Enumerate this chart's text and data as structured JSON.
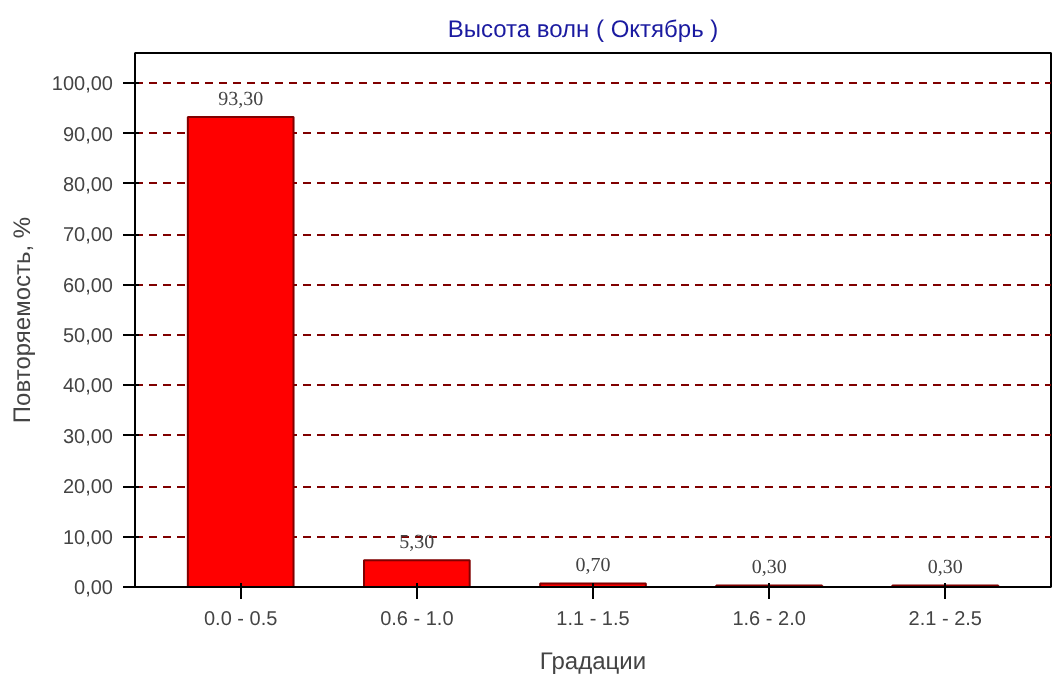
{
  "chart_data": {
    "type": "bar",
    "title": "Высота волн    ( Октябрь )",
    "xlabel": "Градации",
    "ylabel": "Повторяемость, %",
    "categories": [
      "0.0 - 0.5",
      "0.6 - 1.0",
      "1.1 - 1.5",
      "1.6 - 2.0",
      "2.1 - 2.5"
    ],
    "values": [
      93.3,
      5.3,
      0.7,
      0.3,
      0.3
    ],
    "value_labels": [
      "93,30",
      "5,30",
      "0,70",
      "0,30",
      "0,30"
    ],
    "color": "#ff0000",
    "ylim": [
      0,
      106
    ],
    "yticks": [
      {
        "value": 0,
        "label": "0,00"
      },
      {
        "value": 10,
        "label": "10,00"
      },
      {
        "value": 20,
        "label": "20,00"
      },
      {
        "value": 30,
        "label": "30,00"
      },
      {
        "value": 40,
        "label": "40,00"
      },
      {
        "value": 50,
        "label": "50,00"
      },
      {
        "value": 60,
        "label": "60,00"
      },
      {
        "value": 70,
        "label": "70,00"
      },
      {
        "value": 80,
        "label": "80,00"
      },
      {
        "value": 90,
        "label": "90,00"
      },
      {
        "value": 100,
        "label": "100,00"
      }
    ],
    "grid": "y"
  }
}
